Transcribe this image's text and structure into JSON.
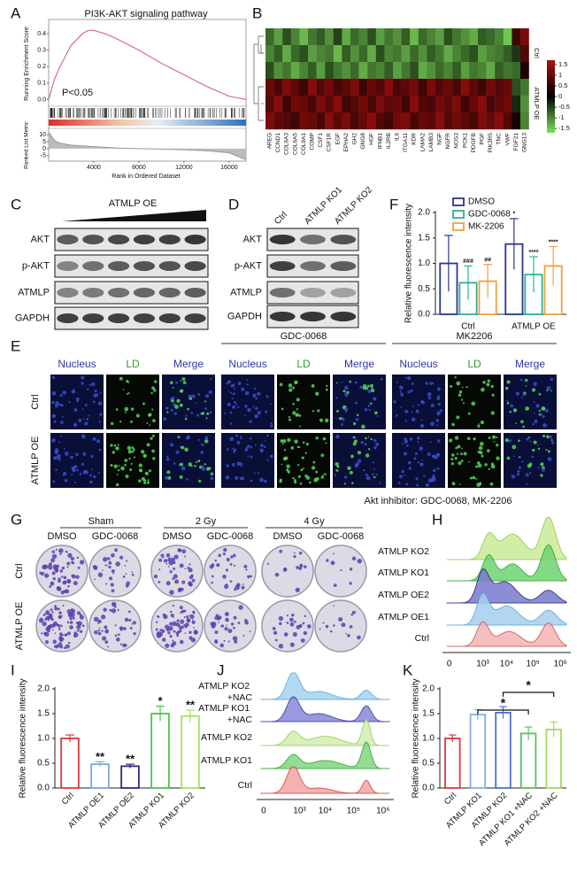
{
  "panel_labels": [
    "A",
    "B",
    "C",
    "D",
    "F",
    "E",
    "G",
    "H",
    "I",
    "J",
    "K"
  ],
  "chart_data": [
    {
      "type": "line",
      "title": "PI3K-AKT signaling pathway",
      "ylabel": "Running Enrichment Score",
      "xlabel": "Rank in Ordered Dataset",
      "annotation": "P<0.05",
      "color": "#d4707c",
      "x": [
        0,
        500,
        1000,
        2000,
        3000,
        3500,
        4000,
        5000,
        6000,
        8000,
        10000,
        12000,
        14000,
        16000,
        17500
      ],
      "values": [
        0,
        0.12,
        0.2,
        0.33,
        0.4,
        0.42,
        0.42,
        0.4,
        0.37,
        0.3,
        0.22,
        0.15,
        0.08,
        0.02,
        0
      ],
      "xlim": [
        0,
        17500
      ],
      "xticks": [
        4000,
        8000,
        12000,
        16000
      ],
      "ylim": [
        -0.03,
        0.47
      ],
      "yticks": [
        {
          "value": 0,
          "label": "0.0"
        },
        0.1,
        0.2,
        0.3,
        0.4
      ],
      "metric_label": "Ranked List Metric",
      "metric": [
        12,
        6,
        4,
        2.5,
        2,
        1.8,
        1.5,
        1,
        0.5,
        0,
        -0.3,
        -0.8,
        -1.5,
        -3,
        -8
      ],
      "metric_ylim": [
        -9,
        14
      ],
      "metric_yticks": [
        10,
        5,
        0,
        -5
      ]
    },
    {
      "type": "heatmap",
      "columns": [
        "AREG",
        "CCND1",
        "COL6A3",
        "COL6A5",
        "COL9A1",
        "COMP",
        "CSF1",
        "CSF1R",
        "EGF",
        "EPHA2",
        "GH2",
        "GNG8",
        "HGF",
        "IFNB1",
        "IL2RB",
        "IL6",
        "ITGA11",
        "KDR",
        "LAMA2",
        "LAMB3",
        "NGF",
        "NGFR",
        "NOS3",
        "PCK1",
        "PDGFB",
        "PGF",
        "PIK3R5",
        "TNC",
        "VWF",
        "FGF21",
        "GNG13"
      ],
      "row_groups": [
        "Ctrl",
        "ATMLP OE"
      ],
      "values": [
        [
          -0.8,
          -1.2,
          -0.6,
          -1.0,
          -1.4,
          -0.9,
          -0.7,
          -1.1,
          -0.5,
          -1.3,
          -0.8,
          -1.0,
          -0.6,
          -1.2,
          -0.9,
          -1.1,
          -0.7,
          -1.4,
          -0.8,
          -1.0,
          -1.2,
          -0.6,
          -0.9,
          -1.1,
          -1.3,
          -0.7,
          -0.8,
          -1.0,
          -1.5,
          0.6,
          1.2
        ],
        [
          -1.0,
          -0.7,
          -1.3,
          -0.8,
          -0.6,
          -1.2,
          -1.0,
          -0.9,
          -1.4,
          -0.7,
          -1.1,
          -0.8,
          -1.3,
          -0.6,
          -1.0,
          -0.9,
          -1.2,
          -0.8,
          -1.1,
          -0.7,
          -0.9,
          -1.3,
          -1.0,
          -0.8,
          -0.6,
          -1.2,
          -1.0,
          -0.9,
          -0.7,
          -0.4,
          0.8
        ],
        [
          -0.6,
          -1.1,
          -0.9,
          -1.3,
          -1.0,
          -0.7,
          -1.2,
          -0.6,
          -0.9,
          -1.1,
          -0.8,
          -1.3,
          -0.9,
          -1.0,
          -0.7,
          -1.2,
          -0.9,
          -0.6,
          -1.3,
          -1.1,
          -0.8,
          -1.0,
          -0.7,
          -1.2,
          -0.9,
          -1.0,
          -1.3,
          -0.7,
          -0.9,
          -0.8,
          0.3
        ],
        [
          1.0,
          0.7,
          1.2,
          0.9,
          0.6,
          1.3,
          0.8,
          1.1,
          0.7,
          0.9,
          1.2,
          0.6,
          1.0,
          0.8,
          1.3,
          0.7,
          0.9,
          1.1,
          0.6,
          1.2,
          0.8,
          1.0,
          0.7,
          1.3,
          0.9,
          0.6,
          1.1,
          0.8,
          1.0,
          -0.6,
          -0.9
        ],
        [
          0.8,
          1.3,
          0.6,
          1.1,
          1.0,
          0.7,
          1.2,
          0.9,
          1.3,
          0.6,
          0.8,
          1.1,
          0.7,
          1.2,
          0.9,
          1.0,
          0.6,
          1.3,
          0.8,
          0.7,
          1.1,
          0.9,
          1.2,
          0.6,
          1.0,
          1.3,
          0.7,
          0.9,
          1.1,
          -0.3,
          -1.1
        ],
        [
          1.2,
          0.9,
          0.8,
          0.6,
          1.1,
          1.0,
          0.7,
          1.3,
          0.9,
          1.2,
          0.7,
          1.0,
          1.3,
          0.8,
          0.6,
          1.1,
          1.2,
          0.7,
          1.0,
          0.9,
          1.3,
          0.8,
          1.1,
          0.9,
          0.7,
          1.2,
          1.0,
          1.3,
          0.8,
          0.2,
          -1.0
        ]
      ],
      "clim": [
        -1.7,
        1.7
      ],
      "colorbar_ticks": [
        1.5,
        1,
        0.5,
        0,
        -0.5,
        -1,
        -1.5
      ]
    },
    {
      "type": "bar",
      "ylabel": "Relative fluorescence intensity",
      "categories": [
        "Ctrl",
        "ATMLP OE"
      ],
      "series": [
        {
          "name": "DMSO",
          "color": "#2a3590",
          "values": [
            1.0,
            1.38
          ],
          "errors": [
            0.55,
            0.5
          ],
          "annotations": [
            null,
            "*"
          ]
        },
        {
          "name": "GDC-0068",
          "color": "#2bb09a",
          "values": [
            0.62,
            0.78
          ],
          "errors": [
            0.33,
            0.35
          ],
          "annotations": [
            "###",
            "****"
          ]
        },
        {
          "name": "MK-2206",
          "color": "#f0a040",
          "values": [
            0.65,
            0.95
          ],
          "errors": [
            0.33,
            0.38
          ],
          "annotations": [
            "##",
            "****"
          ]
        }
      ],
      "ylim": [
        0,
        2
      ],
      "yticks": [
        {
          "value": 0,
          "label": "0.0"
        },
        0.5,
        {
          "value": 1,
          "label": "1.0"
        },
        1.5,
        {
          "value": 2,
          "label": "2.0"
        }
      ]
    },
    {
      "type": "bar",
      "ylabel": "Relative fluorescence intensity",
      "categories": [
        "Ctrl",
        "ATMLP OE1",
        "ATMLP OE2",
        "ATMLP KO1",
        "ATMLP KO2"
      ],
      "values": [
        1.0,
        0.48,
        0.44,
        1.5,
        1.45
      ],
      "errors": [
        0.07,
        0.05,
        0.04,
        0.15,
        0.12
      ],
      "colors": [
        "#d83a3a",
        "#7fa8e0",
        "#2a2a80",
        "#4cc34c",
        "#a8e060"
      ],
      "annotations": [
        null,
        "**",
        "**",
        "*",
        "**"
      ],
      "ylim": [
        0,
        2
      ],
      "yticks": [
        {
          "value": 0,
          "label": "0.0"
        },
        0.5,
        {
          "value": 1,
          "label": "1.0"
        },
        1.5,
        {
          "value": 2,
          "label": "2.0"
        }
      ]
    },
    {
      "type": "bar",
      "ylabel": "Relative fluorescence intensity",
      "categories": [
        "Ctrl",
        "ATMLP KO1",
        "ATMLP KO2",
        "ATMLP KO1 +NAC",
        "ATMLP KO2 +NAC"
      ],
      "values": [
        1.0,
        1.48,
        1.52,
        1.1,
        1.18
      ],
      "errors": [
        0.07,
        0.1,
        0.12,
        0.13,
        0.15
      ],
      "colors": [
        "#d83a3a",
        "#7fb0e8",
        "#4a6fd8",
        "#5cc05c",
        "#a8d860"
      ],
      "significance": [
        {
          "label": "*",
          "between": [
            1,
            3
          ]
        },
        {
          "label": "*",
          "between": [
            2,
            4
          ]
        }
      ],
      "ylim": [
        0,
        2
      ],
      "yticks": [
        {
          "value": 0,
          "label": "0.0"
        },
        0.5,
        {
          "value": 1,
          "label": "1.0"
        },
        1.5,
        {
          "value": 2,
          "label": "2.0"
        }
      ]
    }
  ],
  "blot_c": {
    "title": "ATMLP OE",
    "rows": [
      "AKT",
      "p-AKT",
      "ATMLP",
      "GAPDH"
    ]
  },
  "blot_d": {
    "lanes": [
      "Ctrl",
      "ATMLP KO1",
      "ATMLP KO2"
    ],
    "rows": [
      "AKT",
      "p-AKT",
      "ATMLP",
      "GAPDH"
    ]
  },
  "microscopy": {
    "groups": [
      "GDC-0068",
      "MK2206"
    ],
    "columns": [
      "Nucleus",
      "LD",
      "Merge",
      "Nucleus",
      "LD",
      "Merge",
      "Nucleus",
      "LD",
      "Merge"
    ],
    "rows": [
      "Ctrl",
      "ATMLP OE"
    ],
    "caption": "Akt inhibitor: GDC-0068, MK-2206"
  },
  "colony": {
    "groups": [
      "Sham",
      "2 Gy",
      "4 Gy"
    ],
    "treatments": [
      "DMSO",
      "GDC-0068",
      "DMSO",
      "GDC-0068",
      "DMSO",
      "GDC-0068"
    ],
    "rows": [
      "Ctrl",
      "ATMLP OE"
    ]
  },
  "flow_h": {
    "samples": [
      "ATMLP KO2",
      "ATMLP KO1",
      "ATMLP OE2",
      "ATMLP OE1",
      "Ctrl"
    ],
    "xtick_labels": [
      "0",
      "10³",
      "10⁴",
      "10⁵",
      "10⁶"
    ]
  },
  "flow_j": {
    "samples": [
      "ATMLP KO2 +NAC",
      "ATMLP KO1 +NAC",
      "ATMLP KO2",
      "ATMLP KO1",
      "Ctrl"
    ],
    "xtick_labels": [
      "0",
      "10³",
      "10⁴",
      "10⁵",
      "10⁶"
    ]
  }
}
